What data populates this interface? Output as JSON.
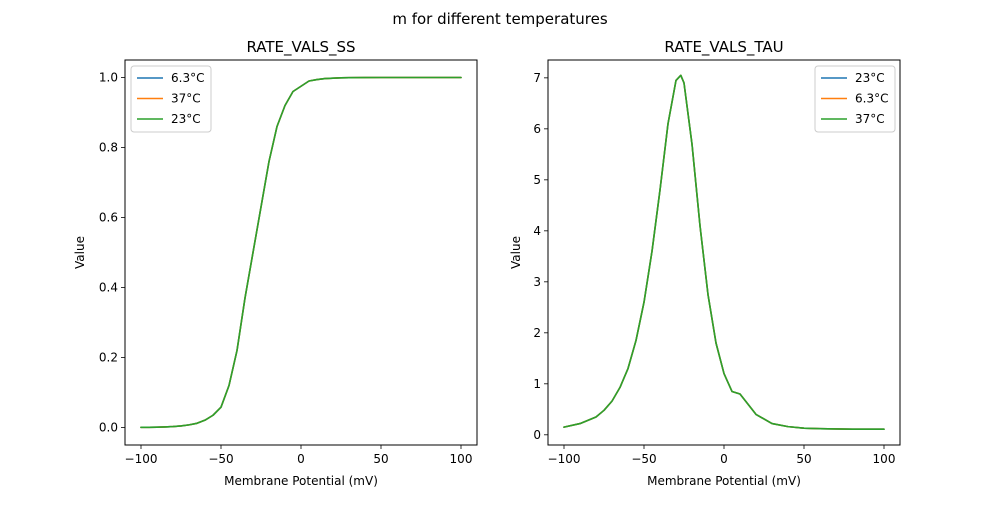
{
  "figure": {
    "title": "m for different temperatures"
  },
  "chart_data": [
    {
      "type": "line",
      "title": "RATE_VALS_SS",
      "xlabel": "Membrane Potential (mV)",
      "ylabel": "Value",
      "xlim": [
        -110,
        110
      ],
      "ylim": [
        -0.05,
        1.05
      ],
      "xticks": [
        -100,
        -50,
        0,
        50,
        100
      ],
      "xtick_labels": [
        "−100",
        "−50",
        "0",
        "50",
        "100"
      ],
      "yticks": [
        0.0,
        0.2,
        0.4,
        0.6,
        0.8,
        1.0
      ],
      "ytick_labels": [
        "0.0",
        "0.2",
        "0.4",
        "0.6",
        "0.8",
        "1.0"
      ],
      "grid": false,
      "legend_position": "top-left",
      "x": [
        -100,
        -95,
        -90,
        -85,
        -80,
        -75,
        -70,
        -65,
        -60,
        -55,
        -50,
        -45,
        -40,
        -35,
        -30,
        -25,
        -20,
        -15,
        -10,
        -5,
        0,
        5,
        10,
        15,
        20,
        25,
        30,
        40,
        50,
        60,
        70,
        80,
        90,
        100
      ],
      "series": [
        {
          "name": "6.3°C",
          "color": "#1f77b4",
          "values": [
            0.0004,
            0.0006,
            0.001,
            0.0016,
            0.0027,
            0.0045,
            0.0075,
            0.012,
            0.021,
            0.035,
            0.058,
            0.12,
            0.22,
            0.37,
            0.5,
            0.63,
            0.76,
            0.86,
            0.92,
            0.96,
            0.975,
            0.99,
            0.994,
            0.997,
            0.998,
            0.999,
            0.9995,
            0.9998,
            1.0,
            1.0,
            1.0,
            1.0,
            1.0,
            1.0
          ]
        },
        {
          "name": "37°C",
          "color": "#ff7f0e",
          "values": [
            0.0004,
            0.0006,
            0.001,
            0.0016,
            0.0027,
            0.0045,
            0.0075,
            0.012,
            0.021,
            0.035,
            0.058,
            0.12,
            0.22,
            0.37,
            0.5,
            0.63,
            0.76,
            0.86,
            0.92,
            0.96,
            0.975,
            0.99,
            0.994,
            0.997,
            0.998,
            0.999,
            0.9995,
            0.9998,
            1.0,
            1.0,
            1.0,
            1.0,
            1.0,
            1.0
          ]
        },
        {
          "name": "23°C",
          "color": "#2ca02c",
          "values": [
            0.0004,
            0.0006,
            0.001,
            0.0016,
            0.0027,
            0.0045,
            0.0075,
            0.012,
            0.021,
            0.035,
            0.058,
            0.12,
            0.22,
            0.37,
            0.5,
            0.63,
            0.76,
            0.86,
            0.92,
            0.96,
            0.975,
            0.99,
            0.994,
            0.997,
            0.998,
            0.999,
            0.9995,
            0.9998,
            1.0,
            1.0,
            1.0,
            1.0,
            1.0,
            1.0
          ]
        }
      ]
    },
    {
      "type": "line",
      "title": "RATE_VALS_TAU",
      "xlabel": "Membrane Potential (mV)",
      "ylabel": "Value",
      "xlim": [
        -110,
        110
      ],
      "ylim": [
        -0.2,
        7.35
      ],
      "xticks": [
        -100,
        -50,
        0,
        50,
        100
      ],
      "xtick_labels": [
        "−100",
        "−50",
        "0",
        "50",
        "100"
      ],
      "yticks": [
        0,
        1,
        2,
        3,
        4,
        5,
        6,
        7
      ],
      "ytick_labels": [
        "0",
        "1",
        "2",
        "3",
        "4",
        "5",
        "6",
        "7"
      ],
      "grid": false,
      "legend_position": "top-right",
      "x": [
        -100,
        -90,
        -80,
        -75,
        -70,
        -65,
        -60,
        -55,
        -50,
        -45,
        -40,
        -35,
        -30,
        -27,
        -25,
        -20,
        -15,
        -10,
        -5,
        0,
        5,
        10,
        20,
        30,
        40,
        50,
        60,
        70,
        80,
        90,
        100
      ],
      "series": [
        {
          "name": "23°C",
          "color": "#1f77b4",
          "values": [
            0.15,
            0.22,
            0.35,
            0.48,
            0.66,
            0.93,
            1.3,
            1.85,
            2.6,
            3.6,
            4.8,
            6.1,
            6.95,
            7.05,
            6.9,
            5.7,
            4.1,
            2.75,
            1.8,
            1.2,
            0.85,
            0.8,
            0.4,
            0.22,
            0.16,
            0.13,
            0.12,
            0.115,
            0.11,
            0.11,
            0.11
          ]
        },
        {
          "name": "6.3°C",
          "color": "#ff7f0e",
          "values": [
            0.15,
            0.22,
            0.35,
            0.48,
            0.66,
            0.93,
            1.3,
            1.85,
            2.6,
            3.6,
            4.8,
            6.1,
            6.95,
            7.05,
            6.9,
            5.7,
            4.1,
            2.75,
            1.8,
            1.2,
            0.85,
            0.8,
            0.4,
            0.22,
            0.16,
            0.13,
            0.12,
            0.115,
            0.11,
            0.11,
            0.11
          ]
        },
        {
          "name": "37°C",
          "color": "#2ca02c",
          "values": [
            0.15,
            0.22,
            0.35,
            0.48,
            0.66,
            0.93,
            1.3,
            1.85,
            2.6,
            3.6,
            4.8,
            6.1,
            6.95,
            7.05,
            6.9,
            5.7,
            4.1,
            2.75,
            1.8,
            1.2,
            0.85,
            0.8,
            0.4,
            0.22,
            0.16,
            0.13,
            0.12,
            0.115,
            0.11,
            0.11,
            0.11
          ]
        }
      ]
    }
  ]
}
